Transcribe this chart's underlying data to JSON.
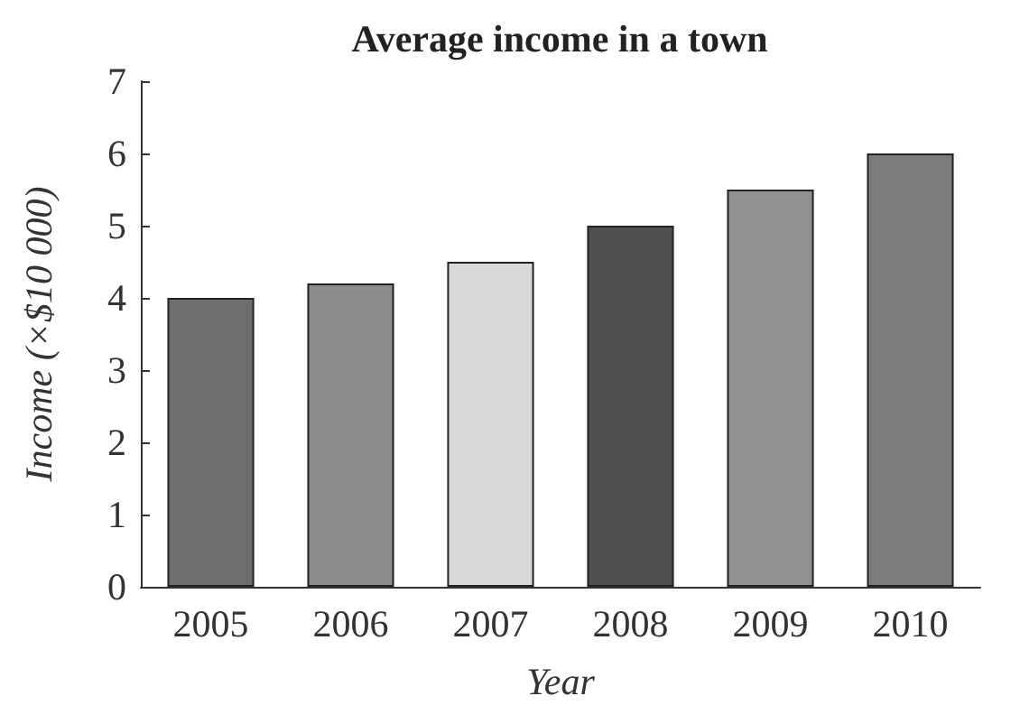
{
  "chart_data": {
    "type": "bar",
    "title": "Average income in a town",
    "xlabel": "Year",
    "ylabel": "Income (×$10 000)",
    "categories": [
      "2005",
      "2006",
      "2007",
      "2008",
      "2009",
      "2010"
    ],
    "values": [
      4,
      4.2,
      4.5,
      5,
      5.5,
      6
    ],
    "colors": [
      "#6e6e6e",
      "#8c8c8c",
      "#d9d9d9",
      "#505050",
      "#909090",
      "#7b7b7b"
    ],
    "ylim": [
      0,
      7
    ],
    "yticks": [
      0,
      1,
      2,
      3,
      4,
      5,
      6,
      7
    ],
    "grid": false
  }
}
